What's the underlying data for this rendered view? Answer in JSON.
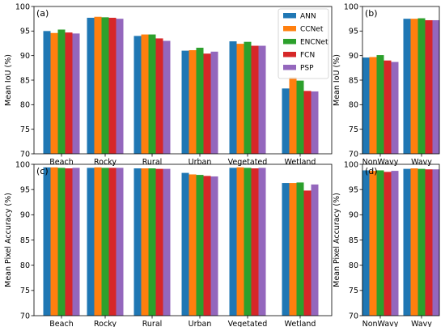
{
  "colors": {
    "ANN": "#1f77b4",
    "CCNet": "#ff7f0e",
    "ENCNet": "#2ca02c",
    "FCN": "#d62728",
    "PSP": "#9467bd"
  },
  "legend": [
    "ANN",
    "CCNet",
    "ENCNet",
    "FCN",
    "PSP"
  ],
  "chart_data": [
    {
      "type": "bar",
      "panel_label": "(a)",
      "ylabel": "Mean IoU (%)",
      "ylim": [
        70,
        100
      ],
      "yticks": [
        70,
        75,
        80,
        85,
        90,
        95,
        100
      ],
      "categories": [
        "Beach",
        "Rocky",
        "Rural",
        "Urban",
        "Vegetated",
        "Wetland"
      ],
      "legend_position": "upper-right",
      "series": [
        {
          "name": "ANN",
          "values": [
            95.0,
            97.7,
            94.0,
            91.0,
            92.9,
            83.3
          ]
        },
        {
          "name": "CCNet",
          "values": [
            94.6,
            97.9,
            94.3,
            91.1,
            92.4,
            85.6
          ]
        },
        {
          "name": "ENCNet",
          "values": [
            95.3,
            97.8,
            94.3,
            91.6,
            92.8,
            84.9
          ]
        },
        {
          "name": "FCN",
          "values": [
            94.7,
            97.7,
            93.5,
            90.4,
            92.0,
            82.8
          ]
        },
        {
          "name": "PSP",
          "values": [
            94.5,
            97.5,
            93.0,
            90.8,
            92.0,
            82.7
          ]
        }
      ]
    },
    {
      "type": "bar",
      "panel_label": "(b)",
      "ylabel": "Mean IoU (%)",
      "ylim": [
        70,
        100
      ],
      "yticks": [
        70,
        75,
        80,
        85,
        90,
        95,
        100
      ],
      "categories": [
        "NonWavy",
        "Wavy"
      ],
      "series": [
        {
          "name": "ANN",
          "values": [
            89.6,
            97.5
          ]
        },
        {
          "name": "CCNet",
          "values": [
            89.7,
            97.5
          ]
        },
        {
          "name": "ENCNet",
          "values": [
            90.1,
            97.6
          ]
        },
        {
          "name": "FCN",
          "values": [
            89.0,
            97.2
          ]
        },
        {
          "name": "PSP",
          "values": [
            88.7,
            97.2
          ]
        }
      ]
    },
    {
      "type": "bar",
      "panel_label": "(c)",
      "ylabel": "Mean Pixel Accuracy (%)",
      "ylim": [
        70,
        100
      ],
      "yticks": [
        70,
        75,
        80,
        85,
        90,
        95,
        100
      ],
      "categories": [
        "Beach",
        "Rocky",
        "Rural",
        "Urban",
        "Vegetated",
        "Wetland"
      ],
      "series": [
        {
          "name": "ANN",
          "values": [
            99.4,
            99.3,
            99.2,
            98.3,
            99.3,
            96.3
          ]
        },
        {
          "name": "CCNet",
          "values": [
            99.4,
            99.4,
            99.2,
            98.0,
            99.4,
            96.3
          ]
        },
        {
          "name": "ENCNet",
          "values": [
            99.3,
            99.3,
            99.2,
            97.9,
            99.3,
            96.4
          ]
        },
        {
          "name": "FCN",
          "values": [
            99.2,
            99.3,
            99.1,
            97.7,
            99.2,
            94.8
          ]
        },
        {
          "name": "PSP",
          "values": [
            99.3,
            99.3,
            99.1,
            97.6,
            99.3,
            96.0
          ]
        }
      ]
    },
    {
      "type": "bar",
      "panel_label": "(d)",
      "ylabel": "Mean Pixel Accuracy (%)",
      "ylim": [
        70,
        100
      ],
      "yticks": [
        70,
        75,
        80,
        85,
        90,
        95,
        100
      ],
      "categories": [
        "NonWavy",
        "Wavy"
      ],
      "series": [
        {
          "name": "ANN",
          "values": [
            98.8,
            99.1
          ]
        },
        {
          "name": "CCNet",
          "values": [
            98.7,
            99.2
          ]
        },
        {
          "name": "ENCNet",
          "values": [
            98.8,
            99.1
          ]
        },
        {
          "name": "FCN",
          "values": [
            98.5,
            99.0
          ]
        },
        {
          "name": "PSP",
          "values": [
            98.7,
            99.0
          ]
        }
      ]
    }
  ]
}
